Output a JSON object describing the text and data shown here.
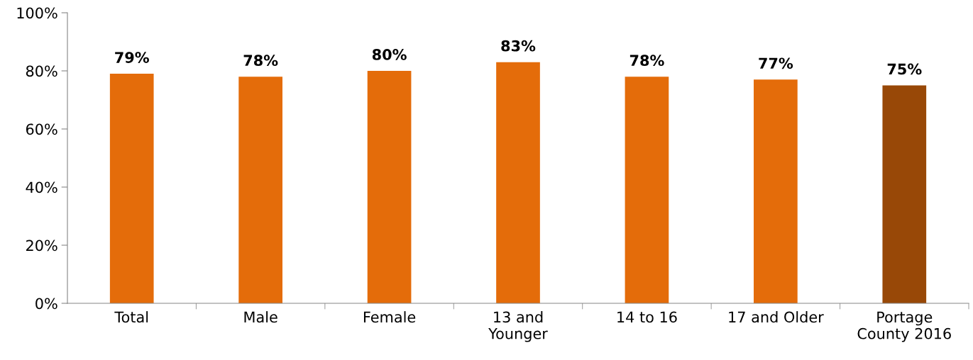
{
  "chart_data": {
    "type": "bar",
    "categories": [
      "Total",
      "Male",
      "Female",
      "13 and\nYounger",
      "14 to 16",
      "17 and Older",
      "Portage\nCounty 2016"
    ],
    "values": [
      79,
      78,
      80,
      83,
      78,
      77,
      75
    ],
    "colors": [
      "#e46c0a",
      "#e46c0a",
      "#e46c0a",
      "#e46c0a",
      "#e46c0a",
      "#e46c0a",
      "#984807"
    ],
    "value_labels": [
      "79%",
      "78%",
      "80%",
      "83%",
      "78%",
      "77%",
      "75%"
    ],
    "ylim": [
      0,
      100
    ],
    "yticks": [
      {
        "value": 0,
        "label": "0%"
      },
      {
        "value": 20,
        "label": "20%"
      },
      {
        "value": 40,
        "label": "40%"
      },
      {
        "value": 60,
        "label": "60%"
      },
      {
        "value": 80,
        "label": "80%"
      },
      {
        "value": 100,
        "label": "100%"
      }
    ],
    "grid": false,
    "legend": false
  }
}
